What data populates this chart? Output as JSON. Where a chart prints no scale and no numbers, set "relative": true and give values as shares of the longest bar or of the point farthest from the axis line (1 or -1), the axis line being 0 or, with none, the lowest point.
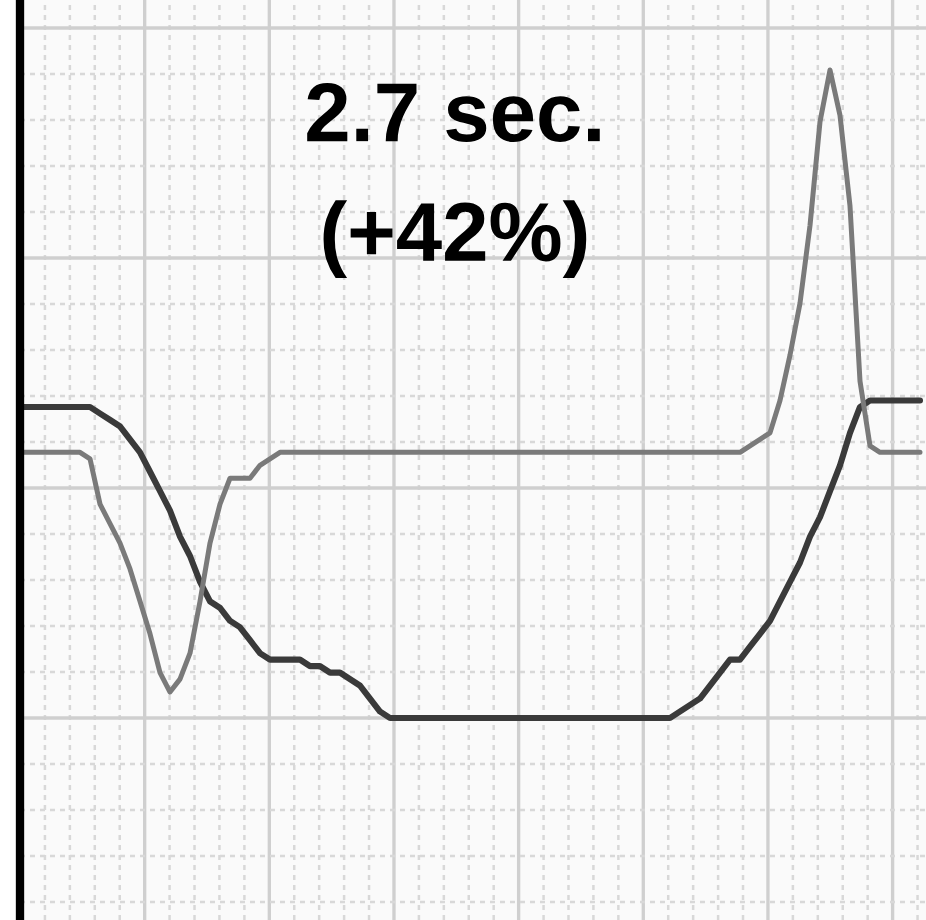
{
  "chart_data": {
    "type": "line",
    "relative": true,
    "grid": true,
    "annotations": [
      "2.7 sec.",
      "(+42%)"
    ],
    "categories": [
      null,
      null,
      null,
      null,
      null,
      null,
      null,
      null,
      null,
      null,
      null,
      null,
      null,
      null,
      null,
      null,
      null,
      null,
      null,
      null,
      null,
      null,
      null,
      null,
      null,
      null,
      null,
      null,
      null,
      null,
      null,
      null,
      null,
      null,
      null,
      null,
      null,
      null,
      null,
      null,
      null,
      null,
      null,
      null,
      null,
      null,
      null,
      null,
      null,
      null,
      null,
      null,
      null,
      null,
      null,
      null,
      null,
      null,
      null,
      null,
      null,
      null,
      null,
      null,
      null,
      null,
      null,
      null,
      null,
      null,
      null,
      null,
      null,
      null,
      null,
      null,
      null,
      null,
      null,
      null,
      null,
      null,
      null,
      null,
      null,
      null,
      null,
      null,
      null,
      null,
      null
    ],
    "series": [
      {
        "color": "#3a3a3a",
        "values": [
          0.48,
          0.48,
          0.48,
          0.48,
          0.48,
          0.48,
          0.48,
          0.48,
          0.47,
          0.46,
          0.45,
          0.43,
          0.41,
          0.38,
          0.35,
          0.32,
          0.28,
          0.25,
          0.21,
          0.18,
          0.17,
          0.15,
          0.14,
          0.12,
          0.1,
          0.09,
          0.09,
          0.09,
          0.09,
          0.08,
          0.08,
          0.07,
          0.07,
          0.06,
          0.05,
          0.03,
          0.01,
          0,
          0,
          0,
          0,
          0,
          0,
          0,
          0,
          0,
          0,
          0,
          0,
          0,
          0,
          0,
          0,
          0,
          0,
          0,
          0,
          0,
          0,
          0,
          0,
          0,
          0,
          0,
          0,
          0,
          0.01,
          0.02,
          0.03,
          0.05,
          0.07,
          0.09,
          0.09,
          0.11,
          0.13,
          0.15,
          0.18,
          0.21,
          0.24,
          0.28,
          0.31,
          0.35,
          0.39,
          0.44,
          0.48,
          0.49,
          0.49,
          0.49,
          0.49,
          0.49,
          0.49
        ]
      },
      {
        "color": "#7a7a7a",
        "values": [
          0.41,
          0.41,
          0.41,
          0.41,
          0.41,
          0.41,
          0.41,
          0.4,
          0.33,
          0.3,
          0.27,
          0.23,
          0.18,
          0.13,
          0.07,
          0.04,
          0.06,
          0.1,
          0.18,
          0.27,
          0.33,
          0.37,
          0.37,
          0.37,
          0.39,
          0.4,
          0.41,
          0.41,
          0.41,
          0.41,
          0.41,
          0.41,
          0.41,
          0.41,
          0.41,
          0.41,
          0.41,
          0.41,
          0.41,
          0.41,
          0.41,
          0.41,
          0.41,
          0.41,
          0.41,
          0.41,
          0.41,
          0.41,
          0.41,
          0.41,
          0.41,
          0.41,
          0.41,
          0.41,
          0.41,
          0.41,
          0.41,
          0.41,
          0.41,
          0.41,
          0.41,
          0.41,
          0.41,
          0.41,
          0.41,
          0.41,
          0.41,
          0.41,
          0.41,
          0.41,
          0.41,
          0.41,
          0.41,
          0.42,
          0.43,
          0.44,
          0.49,
          0.56,
          0.64,
          0.76,
          0.92,
          1.0,
          0.93,
          0.79,
          0.52,
          0.42,
          0.41,
          0.41,
          0.41,
          0.41,
          0.41
        ]
      }
    ]
  }
}
